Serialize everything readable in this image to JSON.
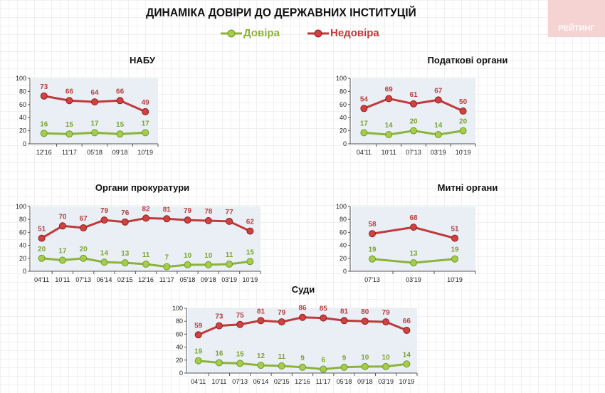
{
  "title": "ДИНАМІКА ДОВІРИ ДО ДЕРЖАВНИХ ІНСТИТУЦІЙ",
  "watermark": "РЕЙТИНГ",
  "legend": [
    {
      "label": "Довіра",
      "color": "#8cb33b"
    },
    {
      "label": "Недовіра",
      "color": "#c0393b"
    }
  ],
  "chart_data": [
    {
      "type": "line",
      "title": "НАБУ",
      "ylim": [
        0,
        100
      ],
      "yticks": [
        0,
        20,
        40,
        60,
        80,
        100
      ],
      "categories": [
        "12'16",
        "11'17",
        "05'18",
        "09'18",
        "10'19"
      ],
      "series": [
        {
          "name": "Довіра",
          "values": [
            16,
            15,
            17,
            15,
            17
          ]
        },
        {
          "name": "Недовіра",
          "values": [
            73,
            66,
            64,
            66,
            49
          ]
        }
      ]
    },
    {
      "type": "line",
      "title": "Податкові органи",
      "ylim": [
        0,
        100
      ],
      "yticks": [
        0,
        20,
        40,
        60,
        80,
        100
      ],
      "categories": [
        "04'11",
        "10'11",
        "07'13",
        "03'19",
        "10'19"
      ],
      "series": [
        {
          "name": "Довіра",
          "values": [
            17,
            14,
            20,
            14,
            20
          ]
        },
        {
          "name": "Недовіра",
          "values": [
            54,
            69,
            61,
            67,
            50
          ]
        }
      ]
    },
    {
      "type": "line",
      "title": "Органи прокуратури",
      "ylim": [
        0,
        100
      ],
      "yticks": [
        0,
        20,
        40,
        60,
        80,
        100
      ],
      "categories": [
        "04'11",
        "10'11",
        "07'13",
        "06'14",
        "02'15",
        "12'16",
        "11'17",
        "05'18",
        "09'18",
        "03'19",
        "10'19"
      ],
      "series": [
        {
          "name": "Довіра",
          "values": [
            20,
            17,
            20,
            14,
            13,
            11,
            7,
            10,
            10,
            11,
            15
          ]
        },
        {
          "name": "Недовіра",
          "values": [
            51,
            70,
            67,
            79,
            76,
            82,
            81,
            79,
            78,
            77,
            62
          ]
        }
      ]
    },
    {
      "type": "line",
      "title": "Митні органи",
      "ylim": [
        0,
        100
      ],
      "yticks": [
        0,
        20,
        40,
        60,
        80,
        100
      ],
      "categories": [
        "07'13",
        "03'19",
        "10'19"
      ],
      "series": [
        {
          "name": "Довіра",
          "values": [
            19,
            13,
            19
          ]
        },
        {
          "name": "Недовіра",
          "values": [
            58,
            68,
            51
          ]
        }
      ]
    },
    {
      "type": "line",
      "title": "Суди",
      "ylim": [
        0,
        100
      ],
      "yticks": [
        0,
        20,
        40,
        60,
        80,
        100
      ],
      "categories": [
        "04'11",
        "10'11",
        "07'13",
        "06'14",
        "02'15",
        "12'16",
        "11'17",
        "05'18",
        "09'18",
        "03'19",
        "10'19"
      ],
      "series": [
        {
          "name": "Довіра",
          "values": [
            19,
            16,
            15,
            12,
            11,
            9,
            6,
            9,
            10,
            10,
            14
          ]
        },
        {
          "name": "Недовіра",
          "values": [
            59,
            73,
            75,
            81,
            79,
            86,
            85,
            81,
            80,
            79,
            66
          ]
        }
      ]
    }
  ]
}
